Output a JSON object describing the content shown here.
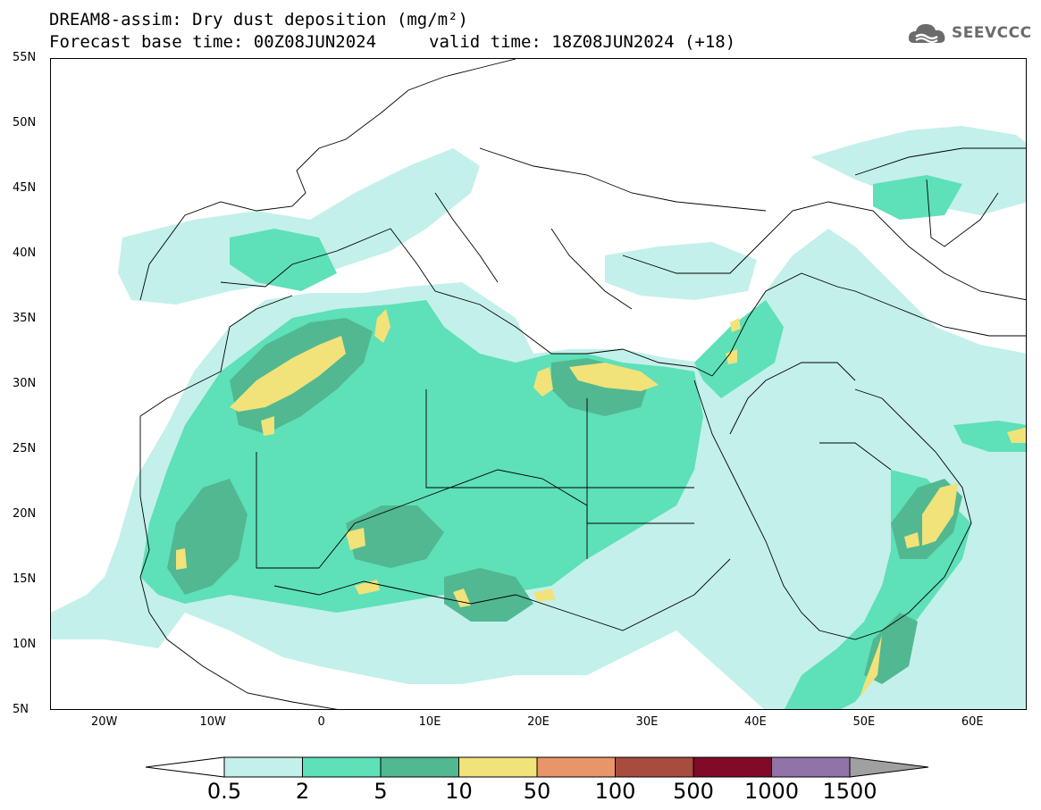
{
  "header": {
    "title_line1": "DREAM8-assim: Dry dust deposition (mg/m²)",
    "base_time": "Forecast base time: 00Z08JUN2024",
    "valid_time": "valid time: 18Z08JUN2024 (+18)",
    "logo_text": "SEEVCCC"
  },
  "map": {
    "lat_range": [
      5,
      55
    ],
    "lon_range": [
      -25,
      65
    ],
    "lat_ticks": [
      {
        "value": 55,
        "label": "55N"
      },
      {
        "value": 50,
        "label": "50N"
      },
      {
        "value": 45,
        "label": "45N"
      },
      {
        "value": 40,
        "label": "40N"
      },
      {
        "value": 35,
        "label": "35N"
      },
      {
        "value": 30,
        "label": "30N"
      },
      {
        "value": 25,
        "label": "25N"
      },
      {
        "value": 20,
        "label": "20N"
      },
      {
        "value": 15,
        "label": "15N"
      },
      {
        "value": 10,
        "label": "10N"
      },
      {
        "value": 5,
        "label": "5N"
      }
    ],
    "lon_ticks": [
      {
        "value": -20,
        "label": "20W"
      },
      {
        "value": -10,
        "label": "10W"
      },
      {
        "value": 0,
        "label": "0"
      },
      {
        "value": 10,
        "label": "10E"
      },
      {
        "value": 20,
        "label": "20E"
      },
      {
        "value": 30,
        "label": "30E"
      },
      {
        "value": 40,
        "label": "40E"
      },
      {
        "value": 50,
        "label": "50E"
      },
      {
        "value": 60,
        "label": "60E"
      }
    ]
  },
  "legend": {
    "levels": [
      "0.5",
      "2",
      "5",
      "10",
      "50",
      "100",
      "500",
      "1000",
      "1500"
    ],
    "colors": [
      "#c3f0ea",
      "#5ee0b8",
      "#51b892",
      "#f2e27a",
      "#e8956a",
      "#a84c3f",
      "#800a28",
      "#9273a8"
    ],
    "under_color": "#ffffff",
    "over_color": "#a0a0a0"
  },
  "colors": {
    "level1": "#c3f0ea",
    "level2": "#5ee0b8",
    "level3": "#51b892",
    "level4": "#f2e27a",
    "coastline": "#000000"
  }
}
